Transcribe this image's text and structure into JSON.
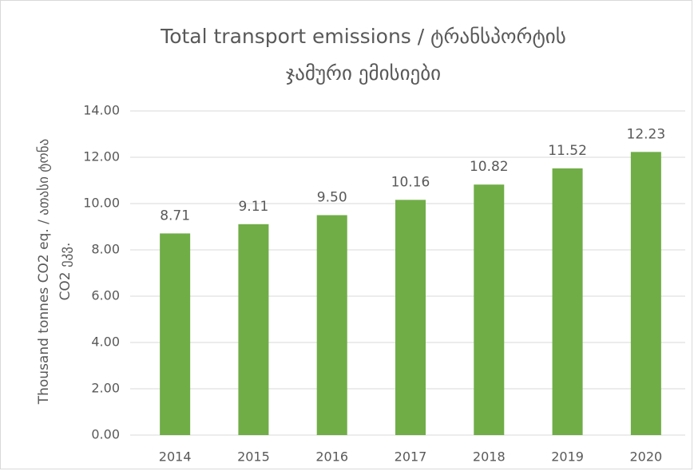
{
  "chart_data": {
    "type": "bar",
    "title": [
      "Total transport emissions / ტრანსპორტის",
      "ჯამური ემისიები"
    ],
    "ylabel": [
      "Thousand tonnes CO2 eq. / ათასი ტონა",
      "CO2 ეკვ."
    ],
    "categories": [
      "2014",
      "2015",
      "2016",
      "2017",
      "2018",
      "2019",
      "2020"
    ],
    "values": [
      8.71,
      9.11,
      9.5,
      10.16,
      10.82,
      11.52,
      12.23
    ],
    "value_labels": [
      "8.71",
      "9.11",
      "9.50",
      "10.16",
      "10.82",
      "11.52",
      "12.23"
    ],
    "color": "#70ad47",
    "ylim": [
      0,
      14
    ],
    "yticks": [
      {
        "value": 0,
        "label": "0.00"
      },
      {
        "value": 2,
        "label": "2.00"
      },
      {
        "value": 4,
        "label": "4.00"
      },
      {
        "value": 6,
        "label": "6.00"
      },
      {
        "value": 8,
        "label": "8.00"
      },
      {
        "value": 10,
        "label": "10.00"
      },
      {
        "value": 12,
        "label": "12.00"
      },
      {
        "value": 14,
        "label": "14.00"
      }
    ],
    "grid": true
  }
}
